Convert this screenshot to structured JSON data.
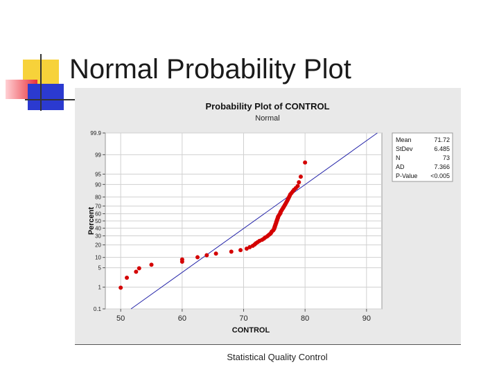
{
  "slide": {
    "title": "Normal Probability Plot",
    "footer": "Statistical Quality Control"
  },
  "colors": {
    "point": "#d40000",
    "fit_line": "#2323a8",
    "panel_bg": "#e9e9e9",
    "plot_bg": "#ffffff",
    "grid": "#d0d0d0",
    "deco_yellow": "#f7d23a",
    "deco_red": "#e8303a",
    "deco_blue": "#2b3ad0"
  },
  "stats": [
    {
      "label": "Mean",
      "value": "71.72"
    },
    {
      "label": "StDev",
      "value": "6.485"
    },
    {
      "label": "N",
      "value": "73"
    },
    {
      "label": "AD",
      "value": "7.366"
    },
    {
      "label": "P-Value",
      "value": "<0.005"
    }
  ],
  "chart_data": {
    "type": "scatter",
    "title": "Probability Plot of CONTROL",
    "subtitle": "Normal",
    "xlabel": "CONTROL",
    "ylabel": "Percent",
    "xlim": [
      47.5,
      92.5
    ],
    "x_ticks": [
      50,
      60,
      70,
      80,
      90
    ],
    "y_scale": "normal-probability",
    "y_ticks": [
      0.1,
      1,
      5,
      10,
      20,
      30,
      40,
      50,
      60,
      70,
      80,
      90,
      95,
      99,
      99.9
    ],
    "y_tick_labels": [
      "0.1",
      "1",
      "5",
      "10",
      "20",
      "30",
      "40",
      "50",
      "60",
      "70",
      "80",
      "90",
      "95",
      "99",
      "99.9"
    ],
    "grid": true,
    "fit_line": {
      "mean": 71.72,
      "stdev": 6.485
    },
    "points": [
      [
        50,
        0.95
      ],
      [
        51,
        2.3
      ],
      [
        52.5,
        3.7
      ],
      [
        53,
        4.8
      ],
      [
        55,
        6.2
      ],
      [
        60,
        7.6
      ],
      [
        60,
        8.8
      ],
      [
        62.5,
        10.1
      ],
      [
        64,
        11.4
      ],
      [
        65.5,
        12.6
      ],
      [
        68,
        14
      ],
      [
        69.5,
        15.3
      ],
      [
        70.5,
        16.5
      ],
      [
        71,
        17.8
      ],
      [
        71.5,
        19.1
      ],
      [
        71.8,
        20.4
      ],
      [
        72,
        21.6
      ],
      [
        72.3,
        22.9
      ],
      [
        72.6,
        24.2
      ],
      [
        73,
        25.4
      ],
      [
        73.3,
        26.7
      ],
      [
        73.5,
        28
      ],
      [
        73.8,
        29.2
      ],
      [
        74,
        30.5
      ],
      [
        74.2,
        31.8
      ],
      [
        74.4,
        33
      ],
      [
        74.5,
        34.3
      ],
      [
        74.6,
        35.6
      ],
      [
        74.8,
        36.9
      ],
      [
        74.9,
        38.1
      ],
      [
        75,
        39.4
      ],
      [
        75,
        40.7
      ],
      [
        75.1,
        41.9
      ],
      [
        75.1,
        43.2
      ],
      [
        75.2,
        44.5
      ],
      [
        75.2,
        45.7
      ],
      [
        75.3,
        47
      ],
      [
        75.3,
        48.3
      ],
      [
        75.4,
        49.5
      ],
      [
        75.4,
        50.8
      ],
      [
        75.5,
        52.1
      ],
      [
        75.5,
        53.3
      ],
      [
        75.6,
        54.6
      ],
      [
        75.6,
        55.9
      ],
      [
        75.7,
        57.1
      ],
      [
        75.8,
        58.4
      ],
      [
        75.9,
        59.7
      ],
      [
        76,
        60.9
      ],
      [
        76,
        62.2
      ],
      [
        76.1,
        63.5
      ],
      [
        76.2,
        64.7
      ],
      [
        76.3,
        66
      ],
      [
        76.4,
        67.3
      ],
      [
        76.5,
        68.5
      ],
      [
        76.6,
        69.8
      ],
      [
        76.7,
        71.1
      ],
      [
        76.8,
        72.3
      ],
      [
        76.9,
        73.6
      ],
      [
        77,
        74.9
      ],
      [
        77.1,
        76.1
      ],
      [
        77.2,
        77.4
      ],
      [
        77.3,
        78.7
      ],
      [
        77.4,
        79.9
      ],
      [
        77.5,
        81.2
      ],
      [
        77.6,
        82.5
      ],
      [
        77.8,
        83.7
      ],
      [
        78,
        85
      ],
      [
        78.2,
        86.3
      ],
      [
        78.5,
        87.6
      ],
      [
        78.8,
        89
      ],
      [
        79,
        91.3
      ],
      [
        79.3,
        94
      ],
      [
        80,
        98
      ]
    ]
  }
}
